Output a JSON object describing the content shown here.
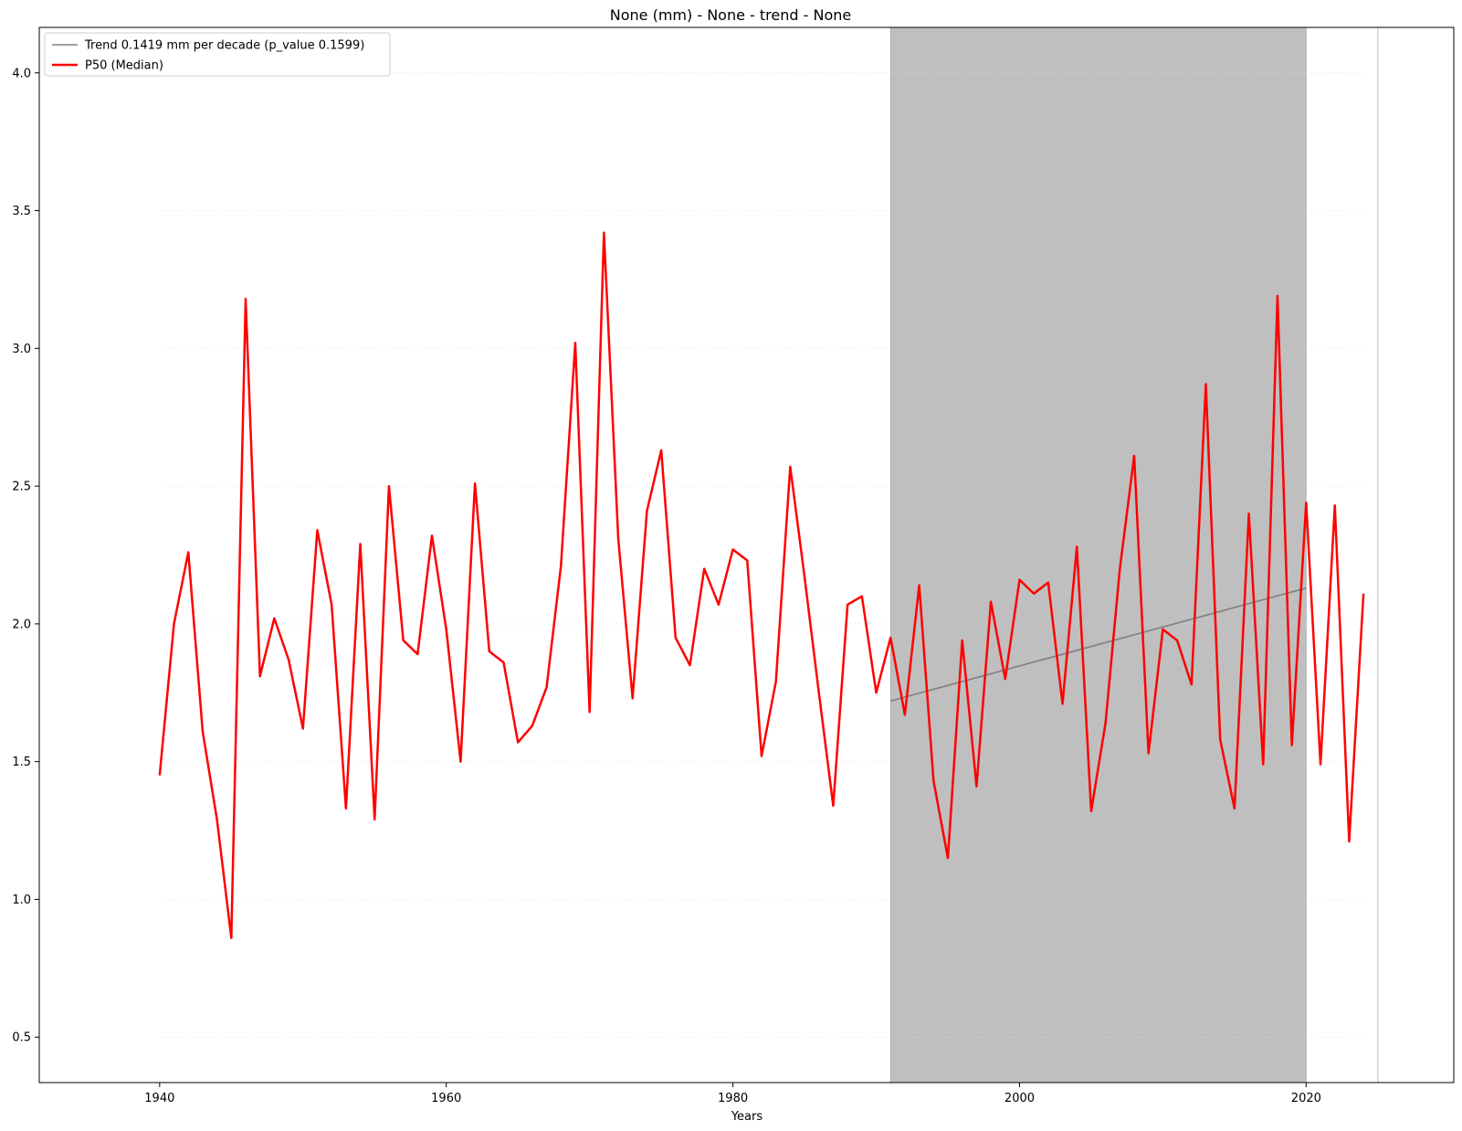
{
  "chart_data": {
    "type": "line",
    "title": "None (mm) - None - trend  - None",
    "xlabel": "Years",
    "ylabel": "",
    "xlim": [
      1931.6,
      2030.3
    ],
    "ylim": [
      0.335,
      4.165
    ],
    "x_ticks": [
      1940,
      1960,
      1980,
      2000,
      2020
    ],
    "y_ticks": [
      0.5,
      1.0,
      1.5,
      2.0,
      2.5,
      3.0,
      3.5,
      4.0
    ],
    "y_tick_labels": [
      "0.5",
      "1.0",
      "1.5",
      "2.0",
      "2.5",
      "3.0",
      "3.5",
      "4.0"
    ],
    "grid": true,
    "legend_position": "top-left",
    "colors": {
      "median": "#ff0000",
      "trend": "#808080",
      "shade": "#bfbfbf",
      "vline": "#c8c8c8"
    },
    "shaded_period": [
      1991,
      2020
    ],
    "vertical_line_x": 2025,
    "series": [
      {
        "name": "Trend 0.1419 mm per decade (p_value 0.1599)",
        "kind": "trend",
        "x": [
          1991,
          2020
        ],
        "y": [
          1.72,
          2.13
        ]
      },
      {
        "name": "P50 (Median)",
        "kind": "median",
        "x": [
          1940,
          1941,
          1942,
          1943,
          1944,
          1945,
          1946,
          1947,
          1948,
          1949,
          1950,
          1951,
          1952,
          1953,
          1954,
          1955,
          1956,
          1957,
          1958,
          1959,
          1960,
          1961,
          1962,
          1963,
          1964,
          1965,
          1966,
          1967,
          1968,
          1969,
          1970,
          1971,
          1972,
          1973,
          1974,
          1975,
          1976,
          1977,
          1978,
          1979,
          1980,
          1981,
          1982,
          1983,
          1984,
          1985,
          1986,
          1987,
          1988,
          1989,
          1990,
          1991,
          1992,
          1993,
          1994,
          1995,
          1996,
          1997,
          1998,
          1999,
          2000,
          2001,
          2002,
          2003,
          2004,
          2005,
          2006,
          2007,
          2008,
          2009,
          2010,
          2011,
          2012,
          2013,
          2014,
          2015,
          2016,
          2017,
          2018,
          2019,
          2020,
          2021,
          2022,
          2023,
          2024
        ],
        "y": [
          1.45,
          2.0,
          2.26,
          1.61,
          1.29,
          0.86,
          3.18,
          1.81,
          2.02,
          1.87,
          1.62,
          2.34,
          2.07,
          1.33,
          2.29,
          1.29,
          2.5,
          1.94,
          1.89,
          2.32,
          1.98,
          1.5,
          2.51,
          1.9,
          1.86,
          1.57,
          1.63,
          1.77,
          2.21,
          3.02,
          1.68,
          3.42,
          2.31,
          1.73,
          2.41,
          2.63,
          1.95,
          1.85,
          2.2,
          2.07,
          2.27,
          2.23,
          1.52,
          1.79,
          2.57,
          2.17,
          1.75,
          1.34,
          2.07,
          2.1,
          1.75,
          1.95,
          1.67,
          2.14,
          1.43,
          1.15,
          1.94,
          1.41,
          2.08,
          1.8,
          2.16,
          2.11,
          2.15,
          1.71,
          2.28,
          1.32,
          1.64,
          2.2,
          2.61,
          1.53,
          1.98,
          1.94,
          1.78,
          2.87,
          1.58,
          1.33,
          2.4,
          1.49,
          3.19,
          1.56,
          2.44,
          1.49,
          2.43,
          1.21,
          2.11
        ]
      }
    ]
  }
}
